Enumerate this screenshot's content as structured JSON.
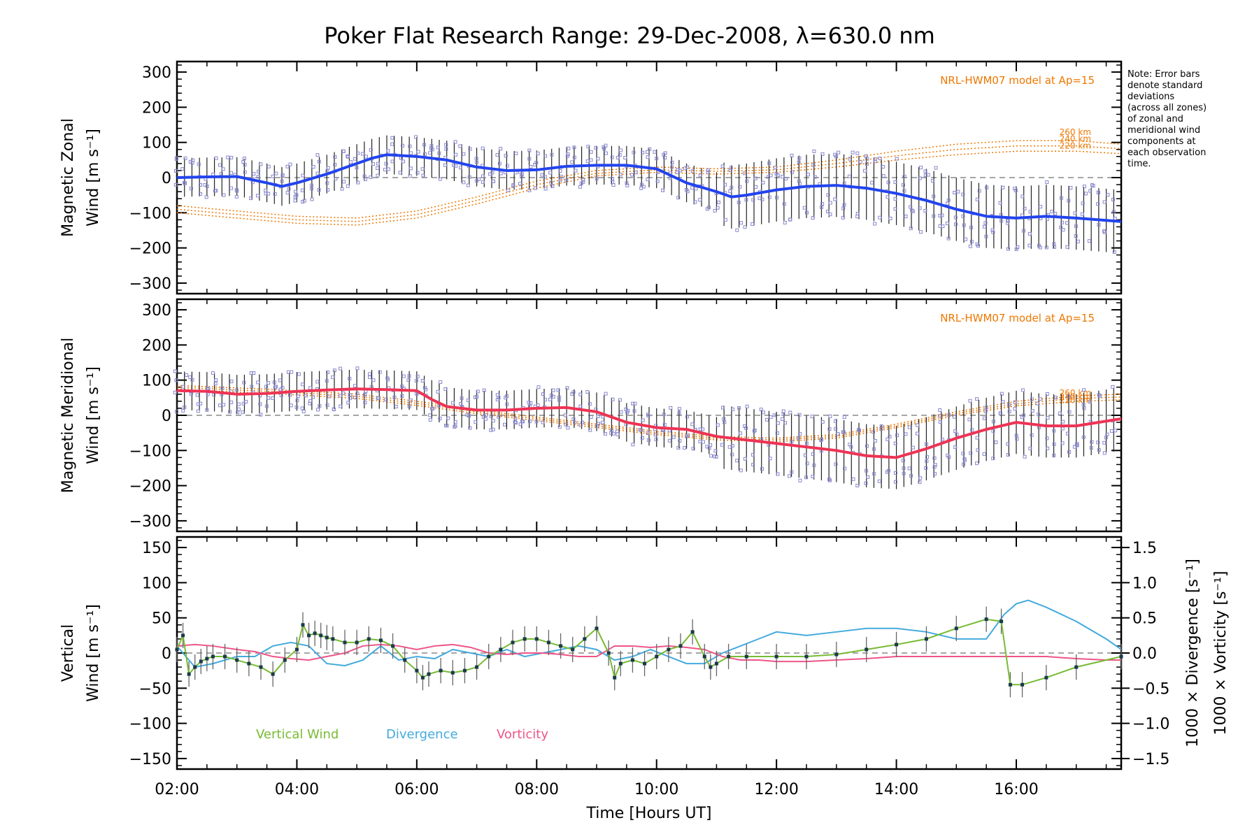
{
  "title": "Poker Flat Research Range: 29-Dec-2008, λ=630.0 nm",
  "note": [
    "Note: Error bars",
    "denote standard",
    "deviations",
    "(across all zones)",
    "of zonal and",
    "meridional wind",
    "components at",
    "each observation",
    "time."
  ],
  "colors": {
    "zonal": "#2244ee",
    "meridional": "#ee3355",
    "vertical": "#77bb33",
    "divergence": "#44aadd",
    "vorticity": "#ee5588",
    "model": "#ee7700",
    "scatter": "#8888cc",
    "zero": "#888888",
    "errorbar": "#222222"
  },
  "chart_data": [
    {
      "id": "zonal",
      "type": "line",
      "ylabel_line1": "Magnetic Zonal",
      "ylabel_line2": "Wind [m s⁻¹]",
      "xlim": [
        2.0,
        17.75
      ],
      "ylim": [
        -330,
        330
      ],
      "yticks": [
        300,
        200,
        100,
        0,
        -100,
        -200,
        -300
      ],
      "yticklabels": [
        "300",
        "200",
        "100",
        "0",
        "−100",
        "−200",
        "−300"
      ],
      "model_label": "NRL-HWM07 model at Ap=15",
      "model_series": [
        {
          "name": "260 km",
          "x": [
            2,
            3,
            4,
            5,
            6,
            7,
            8,
            9,
            10,
            11,
            12,
            13,
            14,
            15,
            16,
            17,
            17.75
          ],
          "y": [
            -80,
            -95,
            -110,
            -115,
            -95,
            -55,
            -10,
            20,
            30,
            25,
            30,
            50,
            75,
            95,
            105,
            105,
            95
          ]
        },
        {
          "name": "240 km",
          "x": [
            2,
            3,
            4,
            5,
            6,
            7,
            8,
            9,
            10,
            11,
            12,
            13,
            14,
            15,
            16,
            17,
            17.75
          ],
          "y": [
            -90,
            -105,
            -120,
            -125,
            -105,
            -65,
            -20,
            12,
            22,
            18,
            22,
            40,
            62,
            80,
            90,
            90,
            82
          ]
        },
        {
          "name": "220 km",
          "x": [
            2,
            3,
            4,
            5,
            6,
            7,
            8,
            9,
            10,
            11,
            12,
            13,
            14,
            15,
            16,
            17,
            17.75
          ],
          "y": [
            -100,
            -115,
            -130,
            -135,
            -115,
            -75,
            -30,
            5,
            15,
            10,
            15,
            30,
            50,
            65,
            75,
            75,
            68
          ]
        }
      ],
      "series": [
        {
          "name": "Magnetic Zonal Wind",
          "x": [
            2.0,
            2.5,
            3.0,
            3.5,
            3.75,
            4.0,
            4.5,
            5.0,
            5.25,
            5.5,
            6.0,
            6.5,
            7.0,
            7.5,
            8.0,
            8.5,
            9.0,
            9.5,
            10.0,
            10.5,
            11.0,
            11.25,
            11.5,
            12.0,
            12.5,
            13.0,
            13.5,
            14.0,
            14.5,
            15.0,
            15.5,
            16.0,
            16.5,
            17.0,
            17.75
          ],
          "y": [
            0,
            2,
            3,
            -15,
            -25,
            -15,
            10,
            40,
            55,
            65,
            60,
            50,
            30,
            20,
            22,
            32,
            35,
            35,
            25,
            -15,
            -40,
            -55,
            -50,
            -35,
            -25,
            -22,
            -30,
            -45,
            -65,
            -90,
            -110,
            -115,
            -110,
            -115,
            -125
          ]
        }
      ]
    },
    {
      "id": "meridional",
      "type": "line",
      "ylabel_line1": "Magnetic Meridional",
      "ylabel_line2": "Wind [m s⁻¹]",
      "xlim": [
        2.0,
        17.75
      ],
      "ylim": [
        -330,
        330
      ],
      "yticks": [
        300,
        200,
        100,
        0,
        -100,
        -200,
        -300
      ],
      "yticklabels": [
        "300",
        "200",
        "100",
        "0",
        "−100",
        "−200",
        "−300"
      ],
      "model_label": "NRL-HWM07 model at Ap=15",
      "model_series": [
        {
          "name": "260 km",
          "x": [
            2,
            3,
            4,
            5,
            6,
            7,
            8,
            9,
            10,
            11,
            12,
            13,
            14,
            15,
            16,
            17,
            17.75
          ],
          "y": [
            85,
            78,
            70,
            60,
            40,
            15,
            -5,
            -25,
            -45,
            -60,
            -65,
            -55,
            -25,
            10,
            40,
            55,
            60
          ]
        },
        {
          "name": "240 km",
          "x": [
            2,
            3,
            4,
            5,
            6,
            7,
            8,
            9,
            10,
            11,
            12,
            13,
            14,
            15,
            16,
            17,
            17.75
          ],
          "y": [
            80,
            72,
            64,
            54,
            34,
            10,
            -10,
            -30,
            -50,
            -65,
            -70,
            -60,
            -30,
            5,
            33,
            48,
            52
          ]
        },
        {
          "name": "220 km",
          "x": [
            2,
            3,
            4,
            5,
            6,
            7,
            8,
            9,
            10,
            11,
            12,
            13,
            14,
            15,
            16,
            17,
            17.75
          ],
          "y": [
            75,
            66,
            58,
            48,
            28,
            5,
            -15,
            -35,
            -55,
            -70,
            -75,
            -65,
            -35,
            0,
            27,
            40,
            44
          ]
        }
      ],
      "series": [
        {
          "name": "Magnetic Meridional Wind",
          "x": [
            2.0,
            2.5,
            3.0,
            3.5,
            4.0,
            4.5,
            5.0,
            5.5,
            6.0,
            6.25,
            6.5,
            7.0,
            7.5,
            8.0,
            8.5,
            9.0,
            9.5,
            10.0,
            10.5,
            11.0,
            11.5,
            12.0,
            12.5,
            13.0,
            13.5,
            14.0,
            14.5,
            15.0,
            15.5,
            16.0,
            16.5,
            17.0,
            17.75
          ],
          "y": [
            70,
            68,
            60,
            62,
            68,
            72,
            75,
            73,
            70,
            45,
            25,
            15,
            15,
            20,
            22,
            10,
            -20,
            -35,
            -40,
            -60,
            -70,
            -80,
            -90,
            -100,
            -115,
            -120,
            -95,
            -65,
            -40,
            -20,
            -30,
            -30,
            -10
          ]
        }
      ]
    },
    {
      "id": "vertical",
      "type": "line",
      "ylabel_line1": "Vertical",
      "ylabel_line2": "Wind [m s⁻¹]",
      "y2label": "1000 × Divergence [s⁻¹]",
      "y3label": "1000 × Vorticity [s⁻¹]",
      "xlim": [
        2.0,
        17.75
      ],
      "ylim": [
        -165,
        165
      ],
      "y2lim": [
        -1.65,
        1.65
      ],
      "yticks": [
        150,
        100,
        50,
        0,
        -50,
        -100,
        -150
      ],
      "yticklabels": [
        "150",
        "100",
        "50",
        "0",
        "−50",
        "−100",
        "−150"
      ],
      "y2ticks": [
        1.5,
        1.0,
        0.5,
        0.0,
        -0.5,
        -1.0,
        -1.5
      ],
      "y2ticklabels": [
        "1.5",
        "1.0",
        "0.5",
        "0.0",
        "−0.5",
        "−1.0",
        "−1.5"
      ],
      "xticks": [
        2,
        4,
        6,
        8,
        10,
        12,
        14,
        16
      ],
      "xticklabels": [
        "02:00",
        "04:00",
        "06:00",
        "08:00",
        "10:00",
        "12:00",
        "14:00",
        "16:00"
      ],
      "xlabel": "Time [Hours UT]",
      "legend": [
        "Vertical Wind",
        "Divergence",
        "Vorticity"
      ],
      "series": [
        {
          "name": "Vertical Wind",
          "x": [
            2.0,
            2.1,
            2.2,
            2.3,
            2.4,
            2.5,
            2.6,
            2.8,
            3.0,
            3.2,
            3.4,
            3.6,
            3.8,
            4.0,
            4.1,
            4.2,
            4.3,
            4.4,
            4.5,
            4.6,
            4.8,
            5.0,
            5.2,
            5.4,
            5.6,
            5.8,
            6.0,
            6.1,
            6.2,
            6.4,
            6.6,
            6.8,
            7.0,
            7.2,
            7.4,
            7.6,
            7.8,
            8.0,
            8.2,
            8.4,
            8.6,
            8.8,
            9.0,
            9.2,
            9.3,
            9.4,
            9.6,
            9.8,
            10.0,
            10.2,
            10.4,
            10.6,
            10.8,
            10.9,
            11.0,
            11.2,
            11.5,
            12.0,
            12.5,
            13.0,
            13.5,
            14.0,
            14.5,
            15.0,
            15.5,
            15.75,
            15.9,
            16.1,
            16.5,
            17.0,
            17.75
          ],
          "y": [
            5,
            25,
            -30,
            -20,
            -12,
            -8,
            -5,
            -5,
            -10,
            -15,
            -20,
            -30,
            -10,
            5,
            40,
            25,
            28,
            25,
            22,
            20,
            15,
            15,
            20,
            18,
            10,
            -10,
            -25,
            -35,
            -30,
            -25,
            -28,
            -25,
            -20,
            -5,
            5,
            15,
            20,
            20,
            15,
            10,
            5,
            20,
            35,
            0,
            -35,
            -15,
            -10,
            -15,
            -5,
            5,
            10,
            30,
            -5,
            -20,
            -15,
            -5,
            -5,
            -5,
            -5,
            -2,
            5,
            12,
            20,
            35,
            48,
            45,
            -45,
            -45,
            -35,
            -20,
            -5
          ]
        },
        {
          "name": "Divergence",
          "x": [
            2.0,
            2.3,
            2.6,
            3.0,
            3.3,
            3.6,
            3.9,
            4.2,
            4.5,
            4.8,
            5.1,
            5.4,
            5.7,
            6.0,
            6.3,
            6.6,
            6.9,
            7.2,
            7.5,
            7.8,
            8.1,
            8.4,
            8.7,
            9.0,
            9.3,
            9.6,
            9.9,
            10.2,
            10.5,
            10.8,
            11.1,
            11.4,
            11.7,
            12.0,
            12.5,
            13.0,
            13.5,
            14.0,
            14.5,
            15.0,
            15.5,
            15.8,
            16.0,
            16.2,
            16.5,
            17.0,
            17.5,
            17.75
          ],
          "y": [
            0.1,
            -0.2,
            -0.15,
            -0.05,
            -0.05,
            0.1,
            0.15,
            0.1,
            -0.15,
            -0.18,
            -0.1,
            0.1,
            -0.1,
            -0.05,
            -0.08,
            0.05,
            0.0,
            -0.05,
            0.05,
            -0.05,
            0.0,
            0.05,
            0.1,
            0.05,
            -0.1,
            -0.05,
            0.05,
            -0.05,
            -0.15,
            -0.15,
            0.0,
            0.1,
            0.2,
            0.3,
            0.25,
            0.3,
            0.35,
            0.35,
            0.3,
            0.2,
            0.2,
            0.55,
            0.7,
            0.75,
            0.65,
            0.45,
            0.2,
            0.05
          ]
        },
        {
          "name": "Vorticity",
          "x": [
            2.0,
            2.3,
            2.6,
            3.0,
            3.3,
            3.6,
            3.9,
            4.2,
            4.5,
            4.8,
            5.1,
            5.4,
            5.7,
            6.0,
            6.3,
            6.6,
            6.9,
            7.2,
            7.5,
            7.8,
            8.1,
            8.4,
            8.7,
            9.0,
            9.3,
            9.6,
            9.9,
            10.2,
            10.5,
            10.8,
            11.1,
            11.4,
            11.7,
            12.0,
            12.5,
            13.0,
            13.5,
            14.0,
            14.5,
            15.0,
            15.5,
            16.0,
            16.5,
            17.0,
            17.5,
            17.75
          ],
          "y": [
            0.1,
            0.12,
            0.1,
            0.05,
            0.02,
            -0.05,
            -0.08,
            -0.1,
            -0.05,
            0.0,
            0.1,
            0.12,
            0.1,
            0.05,
            0.1,
            0.12,
            0.08,
            0.0,
            -0.02,
            0.0,
            0.0,
            -0.02,
            -0.05,
            -0.05,
            0.1,
            0.1,
            0.08,
            0.1,
            0.08,
            0.05,
            -0.05,
            -0.1,
            -0.1,
            -0.12,
            -0.12,
            -0.1,
            -0.08,
            -0.05,
            -0.05,
            -0.05,
            -0.05,
            -0.05,
            -0.05,
            -0.08,
            -0.1,
            -0.1
          ]
        }
      ]
    }
  ]
}
